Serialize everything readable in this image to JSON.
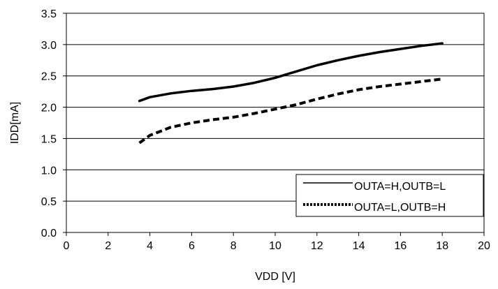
{
  "chart_data": {
    "type": "line",
    "title": "",
    "xlabel": "VDD [V]",
    "ylabel": "IDD[mA]",
    "xlim": [
      0,
      20
    ],
    "ylim": [
      0,
      3.5
    ],
    "x_ticks": [
      "0",
      "2",
      "4",
      "6",
      "8",
      "10",
      "12",
      "14",
      "16",
      "18",
      "20"
    ],
    "y_ticks": [
      "0.0",
      "0.5",
      "1.0",
      "1.5",
      "2.0",
      "2.5",
      "3.0",
      "3.5"
    ],
    "grid": "horizontal",
    "legend_position": "bottom-right",
    "series": [
      {
        "name": "OUTA=H,OUTB=L",
        "style": "solid",
        "color": "#000000",
        "x": [
          3.5,
          4,
          5,
          6,
          7,
          8,
          9,
          10,
          11,
          12,
          13,
          14,
          15,
          16,
          17,
          18
        ],
        "y": [
          2.1,
          2.16,
          2.22,
          2.26,
          2.29,
          2.33,
          2.39,
          2.47,
          2.57,
          2.67,
          2.75,
          2.82,
          2.88,
          2.93,
          2.98,
          3.02
        ]
      },
      {
        "name": "OUTA=L,OUTB=H",
        "style": "dotted",
        "color": "#000000",
        "x": [
          3.5,
          4,
          5,
          6,
          7,
          8,
          9,
          10,
          11,
          12,
          13,
          14,
          15,
          16,
          17,
          18
        ],
        "y": [
          1.43,
          1.55,
          1.68,
          1.75,
          1.8,
          1.84,
          1.9,
          1.97,
          2.04,
          2.13,
          2.21,
          2.28,
          2.33,
          2.37,
          2.41,
          2.45
        ]
      }
    ]
  }
}
